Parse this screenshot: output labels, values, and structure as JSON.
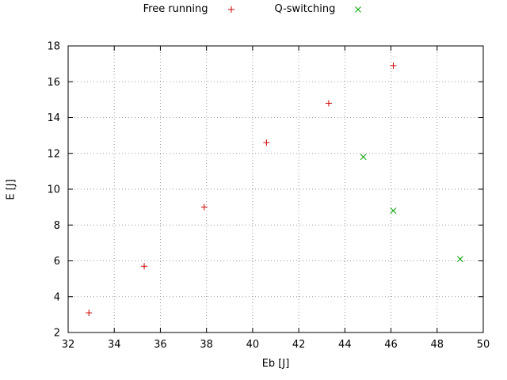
{
  "chart_data": {
    "type": "scatter",
    "title": "",
    "xlabel": "Eb [J]",
    "ylabel": "E [J]",
    "xlim": [
      32,
      50
    ],
    "ylim": [
      2,
      18
    ],
    "xticks": [
      32,
      34,
      36,
      38,
      40,
      42,
      44,
      46,
      48,
      50
    ],
    "yticks": [
      2,
      4,
      6,
      8,
      10,
      12,
      14,
      16,
      18
    ],
    "grid": true,
    "grid_style": "dotted",
    "grid_color": "#9a9a9a",
    "axis_color": "#000000",
    "legend_position": "top-center",
    "series": [
      {
        "name": "Free running",
        "marker": "plus",
        "color": "#cc0000",
        "points": [
          [
            32.9,
            3.1
          ],
          [
            35.3,
            5.7
          ],
          [
            37.9,
            9.0
          ],
          [
            40.6,
            12.6
          ],
          [
            43.3,
            14.8
          ],
          [
            46.1,
            16.9
          ]
        ]
      },
      {
        "name": "Q-switching",
        "marker": "cross",
        "color": "#00a000",
        "points": [
          [
            44.8,
            11.8
          ],
          [
            46.1,
            8.8
          ],
          [
            49.0,
            6.1
          ]
        ]
      }
    ]
  }
}
